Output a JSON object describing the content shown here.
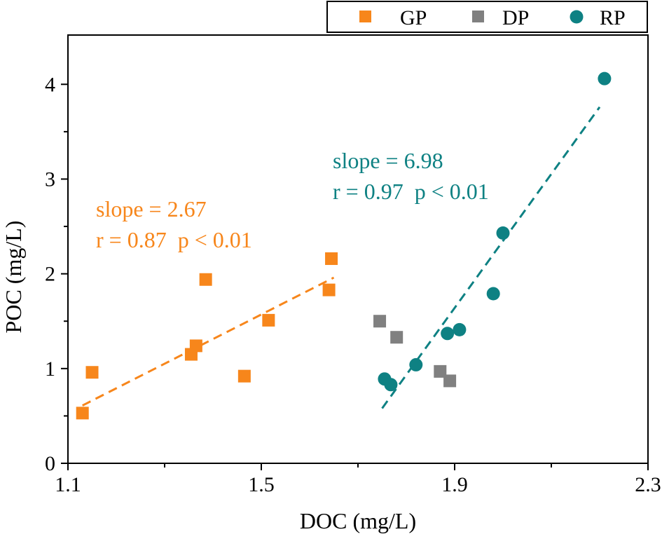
{
  "chart_data": {
    "type": "scatter",
    "title": "",
    "xlabel": "DOC (mg/L)",
    "ylabel": "POC (mg/L)",
    "xlim": [
      1.1,
      2.3
    ],
    "ylim": [
      0,
      4.5
    ],
    "xticks": [
      1.1,
      1.5,
      1.9,
      2.3
    ],
    "xtick_labels": [
      "1.1",
      "1.5",
      "1.9",
      "2.3"
    ],
    "xminor": [
      1.3,
      1.7,
      2.1
    ],
    "yticks": [
      0,
      1,
      2,
      3,
      4
    ],
    "ytick_labels": [
      "0",
      "1",
      "2",
      "3",
      "4"
    ],
    "yminor": [
      0.5,
      1.5,
      2.5,
      3.5
    ],
    "grid": false,
    "legend_position": "top-right",
    "series": [
      {
        "name": "GP",
        "marker": "square",
        "color": "#f7861b",
        "x": [
          1.13,
          1.15,
          1.355,
          1.365,
          1.385,
          1.465,
          1.515,
          1.64,
          1.645
        ],
        "y": [
          0.53,
          0.96,
          1.15,
          1.24,
          1.94,
          0.92,
          1.51,
          1.83,
          2.16
        ]
      },
      {
        "name": "DP",
        "marker": "square",
        "color": "#808080",
        "x": [
          1.745,
          1.78,
          1.87,
          1.89
        ],
        "y": [
          1.5,
          1.33,
          0.97,
          0.87
        ]
      },
      {
        "name": "RP",
        "marker": "circle",
        "color": "#0e8183",
        "x": [
          1.755,
          1.768,
          1.82,
          1.885,
          1.91,
          1.98,
          2.0,
          2.21
        ],
        "y": [
          0.89,
          0.83,
          1.04,
          1.37,
          1.41,
          1.79,
          2.43,
          4.06
        ]
      }
    ],
    "fits": [
      {
        "series": "GP",
        "color": "#f7861b",
        "x": [
          1.13,
          1.65
        ],
        "y": [
          0.61,
          1.96
        ],
        "slope_label": "slope = 2.67",
        "stats_label": "r = 0.87  p < 0.01"
      },
      {
        "series": "RP",
        "color": "#0e8183",
        "x": [
          1.75,
          2.2
        ],
        "y": [
          0.58,
          3.76
        ],
        "slope_label": "slope = 6.98",
        "stats_label": "r = 0.97  p < 0.01"
      }
    ]
  }
}
